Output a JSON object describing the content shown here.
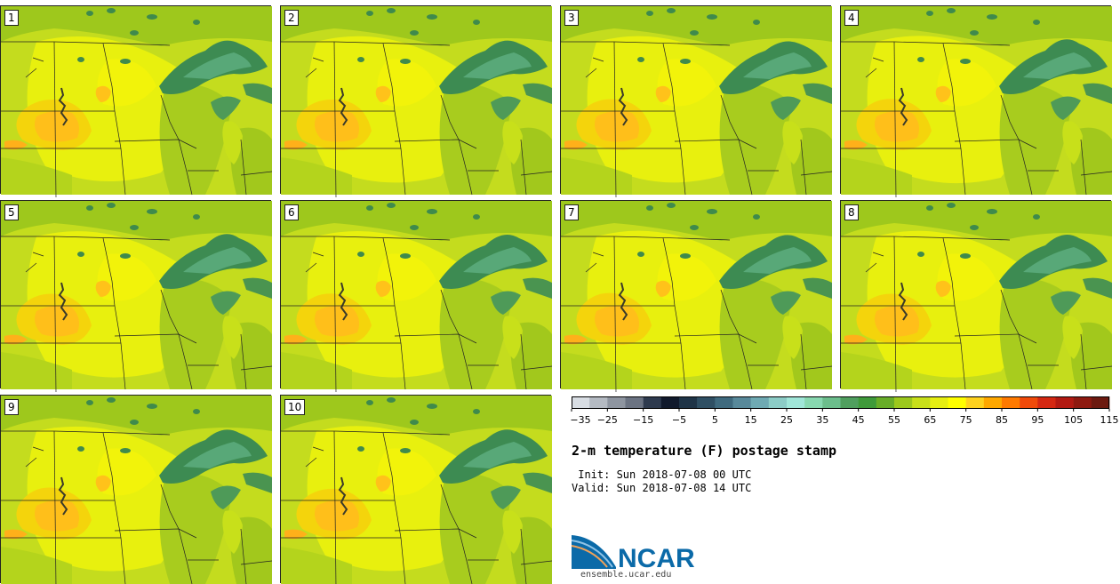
{
  "panels": [
    "1",
    "2",
    "3",
    "4",
    "5",
    "6",
    "7",
    "8",
    "9",
    "10"
  ],
  "colorbar": {
    "tick_labels": [
      "-35",
      "-25",
      "-15",
      "-5",
      "5",
      "15",
      "25",
      "35",
      "45",
      "55",
      "65",
      "75",
      "85",
      "95",
      "105",
      "115"
    ],
    "colors": [
      "#d8dde3",
      "#b4bac2",
      "#8e95a0",
      "#6b7382",
      "#2e3a4e",
      "#111a2c",
      "#1f3447",
      "#2f4f63",
      "#3f6a7e",
      "#58899a",
      "#6faab3",
      "#8cccc6",
      "#a0e6d8",
      "#88d8b0",
      "#6cbe8c",
      "#509f5e",
      "#3f9a3a",
      "#68ad28",
      "#9cc81c",
      "#c8e01a",
      "#e6ee12",
      "#ffff00",
      "#ffd21e",
      "#ffa800",
      "#ff7a00",
      "#f04a0a",
      "#d42812",
      "#b21a12",
      "#8e1a10",
      "#6c1a10"
    ]
  },
  "title": "2-m temperature (F) postage stamp",
  "init": " Init: Sun 2018-07-08 00 UTC",
  "valid": "Valid: Sun 2018-07-08 14 UTC",
  "logo": {
    "brand": "NCAR",
    "url": "ensemble.ucar.edu",
    "color": "#0b6aa8"
  }
}
